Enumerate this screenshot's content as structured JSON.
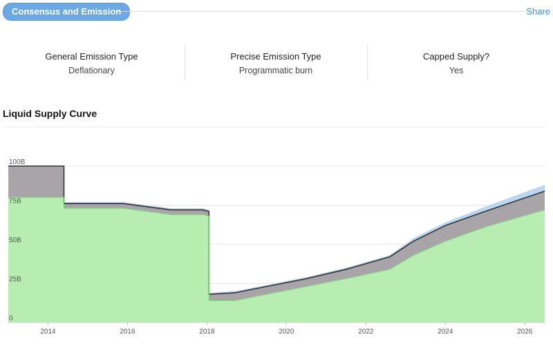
{
  "header": {
    "section_label": "Consensus and Emission",
    "share_label": "Share"
  },
  "stats": [
    {
      "label": "General Emission Type",
      "value": "Deflationary"
    },
    {
      "label": "Precise Emission Type",
      "value": "Programmatic burn"
    },
    {
      "label": "Capped Supply?",
      "value": "Yes"
    }
  ],
  "chart_data": {
    "type": "area",
    "title": "Liquid Supply Curve",
    "xlabel": "",
    "ylabel": "",
    "x_ticks": [
      "2014",
      "2016",
      "2018",
      "2020",
      "2022",
      "2024",
      "2026"
    ],
    "y_ticks": [
      "0",
      "25B",
      "50B",
      "75B",
      "100B"
    ],
    "xlim": [
      2013,
      2026.5
    ],
    "ylim": [
      0,
      100
    ],
    "grid": true,
    "colors": {
      "liquid": "#b8edb1",
      "gap": "#a9a4a8",
      "top": "#b9d7f2",
      "line": "#333333"
    },
    "series": [
      {
        "key": "liquid",
        "x": [
          2013.0,
          2014.4,
          2014.4,
          2015.0,
          2015.9,
          2016.5,
          2017.1,
          2017.9,
          2018.05,
          2018.05,
          2018.7,
          2019.5,
          2020.5,
          2021.5,
          2022.6,
          2023.2,
          2024.0,
          2025.0,
          2026.5
        ],
        "y": [
          80,
          80,
          73,
          73,
          73,
          71,
          69,
          69,
          68,
          14,
          14,
          18,
          23,
          28,
          34,
          43,
          52,
          61,
          72
        ]
      },
      {
        "key": "gap",
        "x": [
          2013.0,
          2014.4,
          2014.4,
          2015.0,
          2015.9,
          2016.5,
          2017.1,
          2017.9,
          2018.05,
          2018.05,
          2018.7,
          2019.5,
          2020.5,
          2021.5,
          2022.6,
          2023.2,
          2024.0,
          2025.0,
          2026.5
        ],
        "y": [
          100,
          100,
          76,
          76,
          76,
          74,
          72,
          72,
          71,
          18,
          19,
          23,
          28,
          34,
          42,
          52,
          62,
          71,
          84
        ]
      },
      {
        "key": "top",
        "x": [
          2013.0,
          2014.4,
          2014.4,
          2015.0,
          2015.9,
          2016.5,
          2017.1,
          2017.9,
          2018.05,
          2018.05,
          2018.7,
          2019.5,
          2020.5,
          2021.5,
          2022.6,
          2023.2,
          2024.0,
          2025.0,
          2026.5
        ],
        "y": [
          100,
          100,
          77,
          77,
          77,
          75,
          73,
          73,
          72,
          19,
          20,
          24,
          29,
          35,
          43,
          54,
          64,
          74,
          88
        ]
      }
    ]
  }
}
